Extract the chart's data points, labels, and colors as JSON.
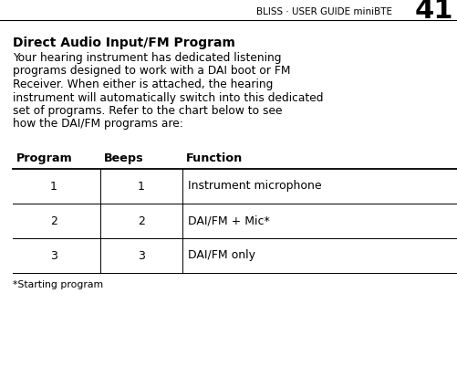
{
  "bg_color": "#ffffff",
  "header_text": "BLISS · USER GUIDE miniBTE",
  "page_number": "41",
  "title": "Direct Audio Input/FM Program",
  "body_lines": [
    "Your hearing instrument has dedicated listening",
    "programs designed to work with a DAI boot or FM",
    "Receiver. When either is attached, the hearing",
    "instrument will automatically switch into this dedicated",
    "set of programs. Refer to the chart below to see",
    "how the DAI/FM programs are:"
  ],
  "table_headers": [
    "Program",
    "Beeps",
    "Function"
  ],
  "table_rows": [
    [
      "1",
      "1",
      "Instrument microphone"
    ],
    [
      "2",
      "2",
      "DAI/FM + Mic*"
    ],
    [
      "3",
      "3",
      "DAI/FM only"
    ]
  ],
  "footnote": "*Starting program",
  "line_color": "#000000",
  "header_fontsize": 7.5,
  "page_num_fontsize": 22,
  "title_fontsize": 10,
  "body_fontsize": 8.8,
  "table_header_fontsize": 9.2,
  "table_row_fontsize": 9.0,
  "footnote_fontsize": 7.8
}
